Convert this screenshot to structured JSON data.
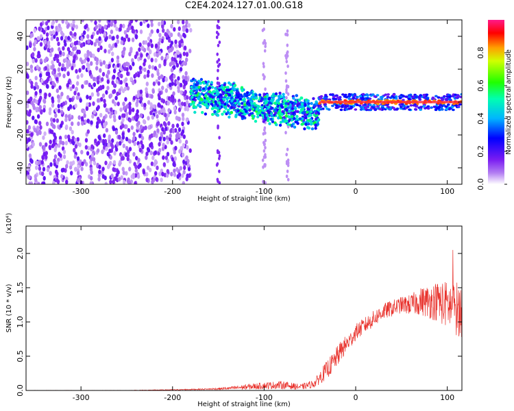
{
  "title": "C2E4.2024.127.01.00.G18",
  "colors": {
    "spectrogram_base": "#7a1cf2",
    "snr_line": "#e8302a",
    "ridge": "#ff2a3a"
  },
  "chart_data": [
    {
      "type": "heatmap",
      "xlabel": "Height of straight line (km)",
      "ylabel": "Frequency (Hz)",
      "xlim": [
        -360,
        116
      ],
      "ylim": [
        -50,
        50
      ],
      "x_ticks": [
        -300,
        -200,
        -100,
        0,
        100
      ],
      "y_ticks": [
        -40,
        -20,
        0,
        20,
        40
      ],
      "grid": false,
      "colorbar": {
        "label": "Normalized spectral amplitude",
        "range": [
          0.0,
          1.0
        ],
        "ticks": [
          "0.0",
          "0.2",
          "0.4",
          "0.6",
          "0.8"
        ],
        "tick_values": [
          0.0,
          0.2,
          0.4,
          0.6,
          0.8
        ],
        "colormap": [
          "#ffffff",
          "#8a2be2",
          "#0000ff",
          "#00ffff",
          "#00ff00",
          "#ffff00",
          "#ff0000",
          "#ff1493"
        ]
      },
      "regions": [
        {
          "x": [
            -360,
            -180
          ],
          "freq_band": [
            -50,
            50
          ],
          "amplitude": 0.08
        },
        {
          "x": [
            -180,
            -40
          ],
          "center_freq": [
            5,
            -8
          ],
          "freq_halfwidth": 8,
          "amplitude": 0.35
        },
        {
          "x": [
            -40,
            116
          ],
          "center_freq": [
            0,
            0
          ],
          "freq_halfwidth": 3,
          "amplitude": 0.9
        }
      ]
    },
    {
      "type": "line",
      "xlabel": "Height of straight line (km)",
      "ylabel": "SNR (10 * v/v)",
      "multiplier": "(x10⁴)",
      "xlim": [
        -360,
        116
      ],
      "ylim": [
        0.0,
        2.4
      ],
      "x_ticks": [
        -300,
        -200,
        -100,
        0,
        100
      ],
      "y_ticks": [
        "0.0",
        "0.5",
        "1.0",
        "1.5",
        "2.0"
      ],
      "y_tick_values": [
        0.0,
        0.5,
        1.0,
        1.5,
        2.0
      ],
      "grid": false,
      "series": [
        {
          "x": [
            -360,
            -300,
            -250,
            -200,
            -160,
            -140,
            -120,
            -100,
            -80,
            -60,
            -45,
            -35,
            -25,
            -15,
            -5,
            0,
            10,
            20,
            30,
            40,
            50,
            60,
            70,
            80,
            90,
            100,
            110,
            116
          ],
          "y": [
            0.0,
            0.0,
            0.0,
            0.01,
            0.02,
            0.03,
            0.05,
            0.07,
            0.08,
            0.05,
            0.1,
            0.25,
            0.4,
            0.6,
            0.75,
            0.85,
            0.95,
            1.05,
            1.15,
            1.2,
            1.25,
            1.25,
            1.3,
            1.3,
            1.3,
            1.25,
            1.2,
            1.15
          ],
          "noise": [
            0.003,
            0.003,
            0.003,
            0.005,
            0.01,
            0.02,
            0.04,
            0.05,
            0.06,
            0.04,
            0.06,
            0.12,
            0.15,
            0.15,
            0.12,
            0.12,
            0.12,
            0.12,
            0.12,
            0.12,
            0.12,
            0.15,
            0.2,
            0.25,
            0.3,
            0.35,
            0.4,
            0.4
          ]
        }
      ]
    }
  ]
}
